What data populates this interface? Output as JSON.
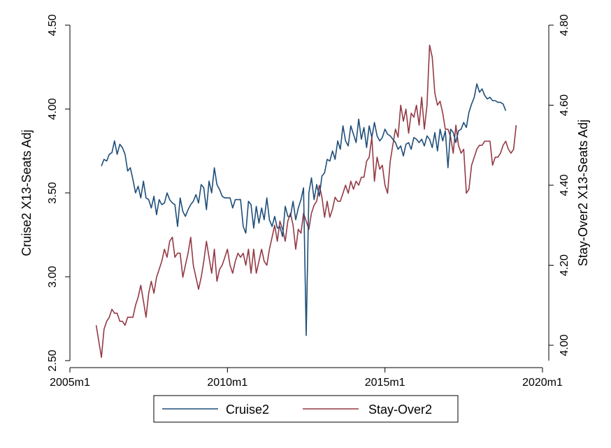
{
  "chart_data": {
    "type": "line",
    "xlabel": "",
    "ylabel_left": "Cruise2 X13-Seats Adj",
    "ylabel_right": "Stay-Over2 X13-Seats Adj",
    "x_ticks": [
      "2005m1",
      "2010m1",
      "2015m1",
      "2020m1"
    ],
    "y_left_ticks": [
      "2.50",
      "3.00",
      "3.50",
      "4.00",
      "4.50"
    ],
    "y_right_ticks": [
      "4.00",
      "4.20",
      "4.40",
      "4.60",
      "4.80"
    ],
    "xlim": [
      "2005m1",
      "2020m1"
    ],
    "ylim_left": [
      2.5,
      4.5
    ],
    "ylim_right": [
      3.98,
      4.8
    ],
    "grid": false,
    "legend_position": "bottom",
    "colors": {
      "Cruise2": "#1f4e79",
      "Stay-Over2": "#943a45"
    },
    "series": [
      {
        "name": "Cruise2",
        "axis": "left",
        "start": "2006m1",
        "values": [
          3.66,
          3.7,
          3.69,
          3.73,
          3.74,
          3.81,
          3.73,
          3.79,
          3.77,
          3.73,
          3.63,
          3.65,
          3.58,
          3.5,
          3.54,
          3.47,
          3.57,
          3.47,
          3.46,
          3.41,
          3.48,
          3.37,
          3.46,
          3.43,
          3.44,
          3.5,
          3.46,
          3.44,
          3.43,
          3.3,
          3.47,
          3.39,
          3.36,
          3.4,
          3.43,
          3.45,
          3.49,
          3.44,
          3.55,
          3.53,
          3.4,
          3.57,
          3.5,
          3.65,
          3.55,
          3.52,
          3.48,
          3.47,
          3.47,
          3.47,
          3.41,
          3.46,
          3.46,
          3.46,
          3.3,
          3.26,
          3.45,
          3.43,
          3.29,
          3.42,
          3.32,
          3.41,
          3.34,
          3.47,
          3.34,
          3.3,
          3.36,
          3.29,
          3.3,
          3.24,
          3.42,
          3.36,
          3.36,
          3.45,
          3.34,
          3.41,
          3.46,
          3.53,
          2.65,
          3.5,
          3.59,
          3.46,
          3.55,
          3.48,
          3.6,
          3.62,
          3.7,
          3.69,
          3.75,
          3.7,
          3.81,
          3.76,
          3.9,
          3.81,
          3.78,
          3.9,
          3.85,
          3.8,
          3.94,
          3.82,
          3.89,
          3.77,
          3.9,
          3.83,
          3.92,
          3.84,
          3.81,
          3.83,
          3.88,
          3.85,
          3.84,
          3.82,
          3.8,
          3.76,
          3.78,
          3.72,
          3.79,
          3.8,
          3.76,
          3.83,
          3.82,
          3.8,
          3.82,
          3.78,
          3.84,
          3.82,
          3.77,
          3.86,
          3.75,
          3.88,
          3.81,
          3.87,
          3.65,
          3.88,
          3.86,
          3.8,
          3.87,
          3.88,
          3.92,
          3.89,
          3.98,
          4.03,
          4.07,
          4.15,
          4.1,
          4.12,
          4.08,
          4.06,
          4.07,
          4.05,
          4.05,
          4.04,
          4.04,
          4.03,
          3.99
        ],
        "rendered_values": [
          3.66,
          3.7,
          3.69,
          3.73,
          3.74,
          3.81,
          3.73,
          3.79,
          3.77,
          3.73,
          3.63,
          3.65,
          3.58,
          3.5,
          3.54,
          3.47,
          3.57,
          3.47,
          3.46,
          3.41,
          3.48,
          3.37,
          3.46,
          3.43,
          3.44,
          3.5,
          3.46,
          3.44,
          3.43,
          3.3,
          3.47,
          3.39,
          3.36,
          3.4,
          3.43,
          3.45,
          3.49,
          3.44,
          3.55,
          3.53,
          3.4,
          3.57,
          3.5,
          3.65,
          3.55,
          3.52,
          3.48,
          3.47,
          3.47,
          3.47,
          3.41,
          3.46,
          3.46,
          3.46,
          3.3,
          3.26,
          3.45,
          3.43,
          3.29,
          3.42,
          3.32,
          3.41,
          3.34,
          3.47,
          3.34,
          3.3,
          3.36,
          3.29,
          3.3,
          3.24,
          3.42,
          3.36,
          3.36,
          3.45,
          3.34,
          3.41,
          3.46,
          3.53,
          2.65,
          3.5,
          3.59,
          3.46,
          3.55,
          3.48,
          3.6,
          3.62,
          3.7,
          3.69,
          3.75,
          3.7,
          3.81,
          3.76,
          3.9,
          3.81,
          3.78,
          3.9,
          3.85,
          3.8,
          3.94,
          3.82,
          3.89,
          3.77,
          3.9,
          3.83,
          3.92,
          3.84,
          3.81,
          3.83,
          3.88,
          3.85,
          3.84,
          3.82,
          3.8,
          3.76,
          3.78,
          3.72,
          3.79,
          3.8,
          3.76,
          3.83,
          3.82,
          3.8,
          3.82,
          3.78,
          3.84,
          3.82,
          3.77,
          3.86,
          3.75,
          3.88,
          3.81,
          3.87,
          3.65,
          3.88,
          3.86,
          3.8,
          3.87,
          3.88,
          3.92,
          3.89,
          3.98,
          4.03,
          4.07,
          4.15,
          4.1,
          4.12,
          4.08,
          4.06,
          4.07,
          4.05,
          4.05,
          4.04,
          4.04,
          4.03,
          3.99
        ]
      },
      {
        "name": "Stay-Over2",
        "axis": "right",
        "start": "2005m11",
        "values": [
          4.05,
          4.01,
          3.97,
          4.04,
          4.06,
          4.07,
          4.09,
          4.08,
          4.08,
          4.06,
          4.06,
          4.05,
          4.07,
          4.07,
          4.07,
          4.1,
          4.12,
          4.15,
          4.11,
          4.07,
          4.13,
          4.16,
          4.13,
          4.17,
          4.19,
          4.21,
          4.24,
          4.22,
          4.26,
          4.27,
          4.22,
          4.23,
          4.23,
          4.17,
          4.2,
          4.23,
          4.27,
          4.2,
          4.17,
          4.14,
          4.17,
          4.21,
          4.26,
          4.22,
          4.18,
          4.24,
          4.16,
          4.19,
          4.2,
          4.22,
          4.24,
          4.2,
          4.18,
          4.21,
          4.23,
          4.22,
          4.23,
          4.2,
          4.24,
          4.18,
          4.24,
          4.18,
          4.21,
          4.24,
          4.21,
          4.2,
          4.24,
          4.27,
          4.3,
          4.26,
          4.31,
          4.29,
          4.26,
          4.31,
          4.33,
          4.3,
          4.24,
          4.29,
          4.28,
          4.33,
          4.31,
          4.29,
          4.33,
          4.35,
          4.36,
          4.4,
          4.37,
          4.32,
          4.36,
          4.32,
          4.34,
          4.37,
          4.36,
          4.36,
          4.38,
          4.4,
          4.38,
          4.41,
          4.39,
          4.41,
          4.4,
          4.42,
          4.42,
          4.46,
          4.47,
          4.52,
          4.41,
          4.47,
          4.44,
          4.45,
          4.4,
          4.38,
          4.46,
          4.5,
          4.54,
          4.52,
          4.6,
          4.56,
          4.59,
          4.53,
          4.58,
          4.57,
          4.6,
          4.55,
          4.62,
          4.54,
          4.6,
          4.75,
          4.72,
          4.63,
          4.6,
          4.61,
          4.58,
          4.54,
          4.54,
          4.52,
          4.48,
          4.55,
          4.5,
          4.48,
          4.49,
          4.38,
          4.39,
          4.45,
          4.47,
          4.49,
          4.5,
          4.5,
          4.51,
          4.51,
          4.51,
          4.45,
          4.47,
          4.47,
          4.48,
          4.5,
          4.51,
          4.49,
          4.48,
          4.49,
          4.55
        ],
        "rendered_values": [
          4.05,
          4.01,
          3.97,
          4.04,
          4.06,
          4.07,
          4.09,
          4.08,
          4.08,
          4.06,
          4.06,
          4.05,
          4.07,
          4.07,
          4.07,
          4.1,
          4.12,
          4.15,
          4.11,
          4.07,
          4.13,
          4.16,
          4.13,
          4.17,
          4.19,
          4.21,
          4.24,
          4.22,
          4.26,
          4.27,
          4.22,
          4.23,
          4.23,
          4.17,
          4.2,
          4.23,
          4.27,
          4.2,
          4.17,
          4.14,
          4.17,
          4.21,
          4.26,
          4.22,
          4.18,
          4.24,
          4.16,
          4.19,
          4.2,
          4.22,
          4.24,
          4.2,
          4.18,
          4.21,
          4.23,
          4.22,
          4.23,
          4.2,
          4.24,
          4.18,
          4.24,
          4.18,
          4.21,
          4.24,
          4.21,
          4.2,
          4.24,
          4.27,
          4.3,
          4.26,
          4.31,
          4.29,
          4.26,
          4.31,
          4.33,
          4.3,
          4.24,
          4.29,
          4.28,
          4.33,
          4.31,
          4.29,
          4.33,
          4.35,
          4.36,
          4.4,
          4.37,
          4.32,
          4.36,
          4.32,
          4.34,
          4.37,
          4.36,
          4.36,
          4.38,
          4.4,
          4.38,
          4.41,
          4.39,
          4.41,
          4.4,
          4.42,
          4.42,
          4.46,
          4.47,
          4.52,
          4.41,
          4.47,
          4.44,
          4.45,
          4.4,
          4.38,
          4.46,
          4.5,
          4.54,
          4.52,
          4.6,
          4.56,
          4.59,
          4.53,
          4.58,
          4.57,
          4.6,
          4.55,
          4.62,
          4.54,
          4.6,
          4.75,
          4.72,
          4.63,
          4.6,
          4.61,
          4.58,
          4.54,
          4.54,
          4.52,
          4.48,
          4.55,
          4.5,
          4.48,
          4.49,
          4.38,
          4.39,
          4.45,
          4.47,
          4.49,
          4.5,
          4.5,
          4.51,
          4.51,
          4.51,
          4.45,
          4.47,
          4.47,
          4.48,
          4.5,
          4.51,
          4.49,
          4.48,
          4.49,
          4.55
        ]
      }
    ]
  }
}
